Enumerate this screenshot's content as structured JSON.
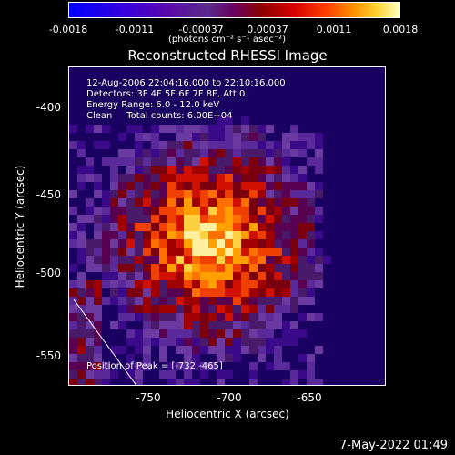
{
  "colorbar": {
    "ticks": [
      "-0.0018",
      "-0.0011",
      "-0.00037",
      "0.00037",
      "0.0011",
      "0.0018"
    ],
    "unit": "(photons cm⁻² s⁻¹ asec⁻²)"
  },
  "title": "Reconstructed RHESSI Image",
  "info": {
    "time": "12-Aug-2006 22:04:16.000 to 22:10:16.000",
    "detectors": "Detectors: 3F 4F 5F 6F 7F 8F, Att 0",
    "energy": "Energy Range: 6.0 - 12.0 keV",
    "clean": "Clean     Total counts: 6.00E+04"
  },
  "peak": "Position of Peak = [-732,-465]",
  "axes": {
    "xlabel": "Heliocentric X (arcsec)",
    "ylabel": "Heliocentric Y (arcsec)",
    "xticks": [
      "-750",
      "-700",
      "-650"
    ],
    "yticks": [
      "-400",
      "-450",
      "-500",
      "-550"
    ]
  },
  "footer_date": "7-May-2022 01:49"
}
